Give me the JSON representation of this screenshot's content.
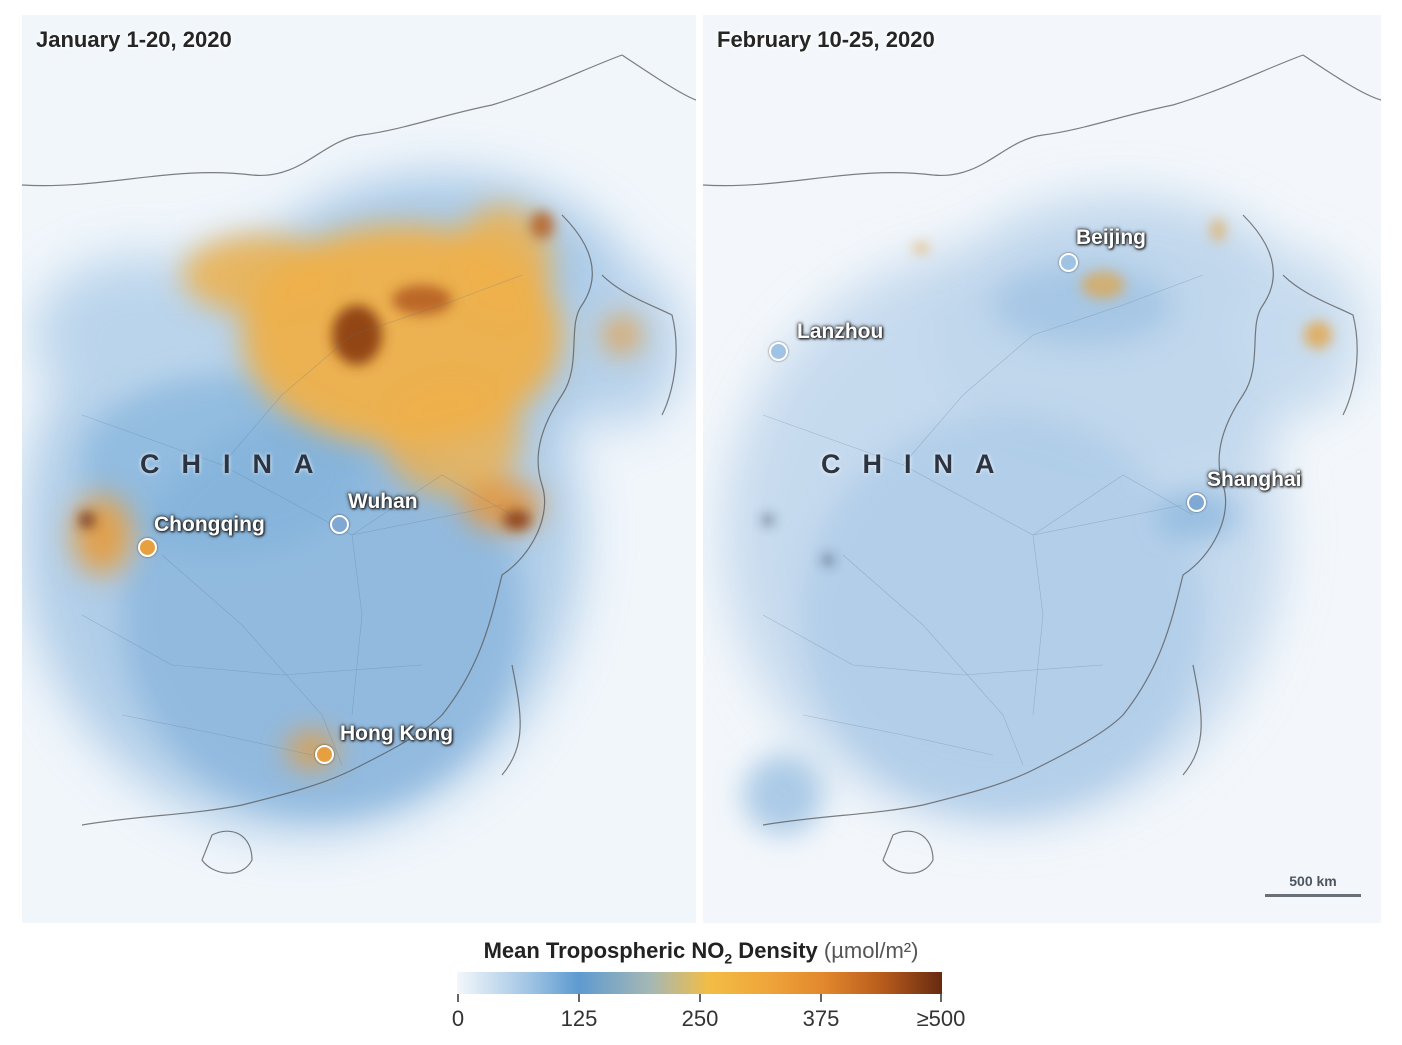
{
  "panels": {
    "left": {
      "title": "January 1-20, 2020",
      "country_label": "CHINA",
      "cities": [
        "Chongqing",
        "Wuhan",
        "Hong Kong"
      ]
    },
    "right": {
      "title": "February 10-25, 2020",
      "country_label": "CHINA",
      "cities": [
        "Beijing",
        "Lanzhou",
        "Shanghai"
      ],
      "scale_bar": "500 km"
    }
  },
  "legend": {
    "title_main": "Mean Tropospheric NO",
    "title_sub": "2",
    "title_rest": " Density ",
    "units": "(µmol/m²)",
    "ticks": [
      "0",
      "125",
      "250",
      "375",
      "≥500"
    ],
    "colors": [
      "#f3f7fb",
      "#5e9ad0",
      "#f2bd45",
      "#e1862d",
      "#672a10"
    ]
  }
}
